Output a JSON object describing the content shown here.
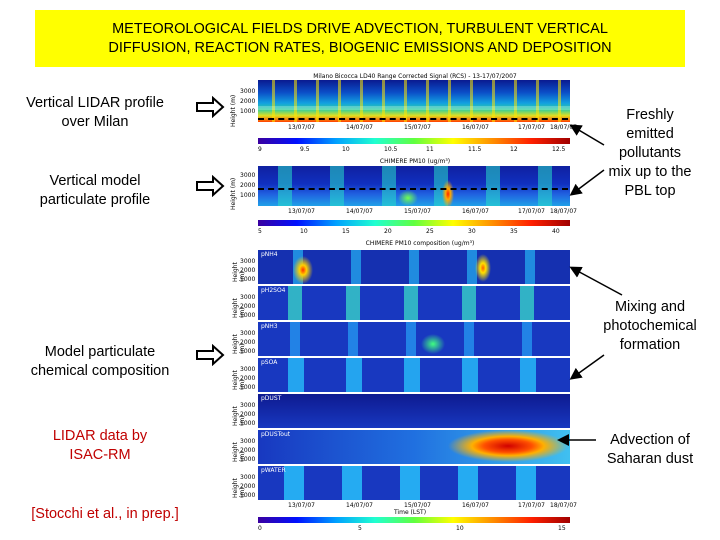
{
  "banner": {
    "line1": "METEOROLOGICAL FIELDS DRIVE ADVECTION, TURBULENT VERTICAL",
    "line2": "DIFFUSION, REACTION RATES, BIOGENIC EMISSIONS AND DEPOSITION"
  },
  "left": {
    "lidar_profile": {
      "line1": "Vertical LIDAR profile",
      "line2": "over Milan"
    },
    "model_profile": {
      "line1": "Vertical model",
      "line2": "particulate profile"
    },
    "chem_comp": {
      "line1": "Model particulate",
      "line2": "chemical composition"
    },
    "lidar_data": {
      "line1": "LIDAR data by",
      "line2": "ISAC-RM"
    },
    "citation": "[Stocchi et al., in prep.]"
  },
  "right": {
    "fresh": {
      "l1": "Freshly",
      "l2": "emitted",
      "l3": "pollutants",
      "l4": "mix up to the",
      "l5": "PBL top"
    },
    "mixing": {
      "l1": "Mixing and",
      "l2": "photochemical",
      "l3": "formation"
    },
    "advection": {
      "l1": "Advection of",
      "l2": "Saharan dust"
    }
  },
  "lidar_panel": {
    "title": "Milano Bicocca LD40 Range Corrected Signal (RCS) - 13-17/07/2007",
    "dates": [
      "13/07/07",
      "14/07/07",
      "15/07/07",
      "16/07/07",
      "17/07/07",
      "18/07/07"
    ],
    "y_ticks": [
      "3000",
      "2000",
      "1000"
    ],
    "ylabel": "Height (m)",
    "cb_ticks": [
      "9",
      "9.5",
      "10",
      "10.5",
      "11",
      "11.5",
      "12",
      "12.5"
    ]
  },
  "pm_panel": {
    "title": "CHIMERE PM10 (ug/m³)",
    "dates": [
      "13/07/07",
      "14/07/07",
      "15/07/07",
      "16/07/07",
      "17/07/07",
      "18/07/07"
    ],
    "y_ticks": [
      "3000",
      "2000",
      "1000"
    ],
    "ylabel": "Height (m)",
    "cb_ticks": [
      "5",
      "10",
      "15",
      "20",
      "25",
      "30",
      "35",
      "40"
    ]
  },
  "comp_panel": {
    "title": "CHIMERE PM10 composition (ug/m³)",
    "species": [
      "pNH4",
      "pH2SO4",
      "pNH3",
      "pSOA",
      "pDUST",
      "pDUSTout",
      "pWATER"
    ],
    "y_ticks": [
      "3000",
      "2000",
      "1000"
    ],
    "ylabel": "Height (m)",
    "dates": [
      "13/07/07",
      "14/07/07",
      "15/07/07",
      "16/07/07",
      "17/07/07",
      "18/07/07"
    ],
    "xlabel": "Time (LST)",
    "cb_ticks": [
      "0",
      "5",
      "10",
      "15"
    ]
  }
}
